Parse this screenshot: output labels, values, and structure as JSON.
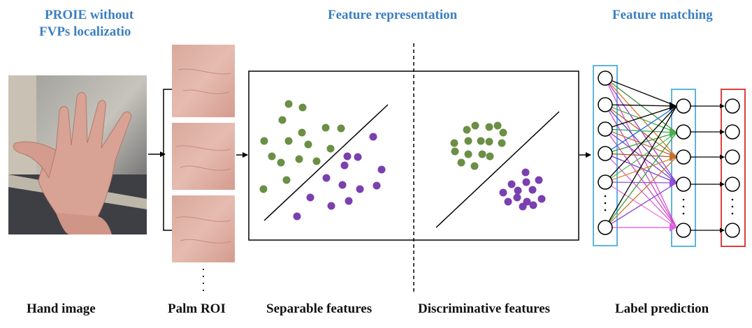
{
  "headers": {
    "proie_line1": "PROIE without",
    "proie_line2": "FVPs localizatio",
    "feature_representation": "Feature representation",
    "feature_matching": "Feature matching"
  },
  "captions": {
    "hand_image": "Hand image",
    "palm_roi": "Palm ROI",
    "separable_features": "Separable features",
    "discriminative_features": "Discriminative features",
    "label_prediction": "Label prediction"
  },
  "colors": {
    "header_blue": "#3c7fc1",
    "green_dot": "#6a8f45",
    "purple_dot": "#7a3fb0",
    "input_layer_box": "#5fb4dd",
    "hidden_layer_box": "#5fb4dd",
    "output_layer_box": "#d9413c",
    "skin": "#d8a294",
    "roi_skin": "#e0b2a5"
  }
}
